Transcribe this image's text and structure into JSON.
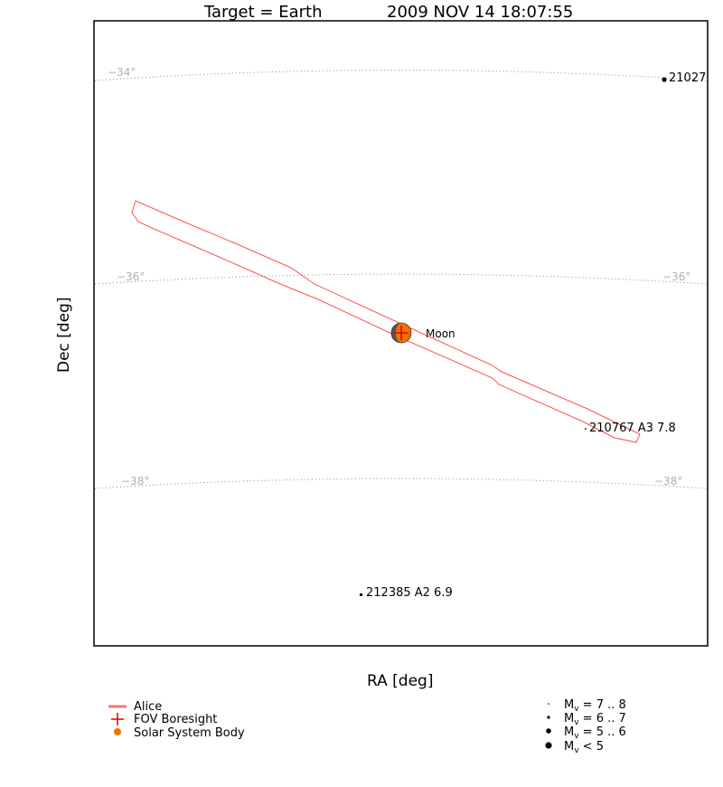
{
  "title": {
    "target": "Target = Earth",
    "timestamp": "2009 NOV 14 18:07:55"
  },
  "axes": {
    "xlabel": "RA [deg]",
    "ylabel": "Dec [deg]"
  },
  "grid": {
    "dec_lines": [
      {
        "left_label": "−34°",
        "right_label": ""
      },
      {
        "left_label": "−36°",
        "right_label": "−36°"
      },
      {
        "left_label": "−38°",
        "right_label": "−38°"
      }
    ]
  },
  "bodies": {
    "moon_label": "Moon"
  },
  "stars": [
    {
      "label": "21027",
      "mag_class": "5 .. 6"
    },
    {
      "label": "210767 A3 7.8",
      "mag_class": "7 .. 8"
    },
    {
      "label": "212385 A2 6.9",
      "mag_class": "6 .. 7"
    }
  ],
  "legend": {
    "left": [
      {
        "label": "Alice",
        "symbol": "line"
      },
      {
        "label": "FOV Boresight",
        "symbol": "cross"
      },
      {
        "label": "Solar System Body",
        "symbol": "disc"
      }
    ],
    "right": [
      {
        "prefix": "M",
        "sub": "v",
        "range": " = 7 .. 8"
      },
      {
        "prefix": "M",
        "sub": "v",
        "range": " = 6 .. 7"
      },
      {
        "prefix": "M",
        "sub": "v",
        "range": " = 5 .. 6"
      },
      {
        "prefix": "M",
        "sub": "v",
        "range": " < 5"
      }
    ]
  },
  "colors": {
    "fov_outline": "#ff5050",
    "boresight": "#e00000",
    "body": "#f07000",
    "grid": "#888888",
    "grid_label": "#b0b0b0"
  }
}
